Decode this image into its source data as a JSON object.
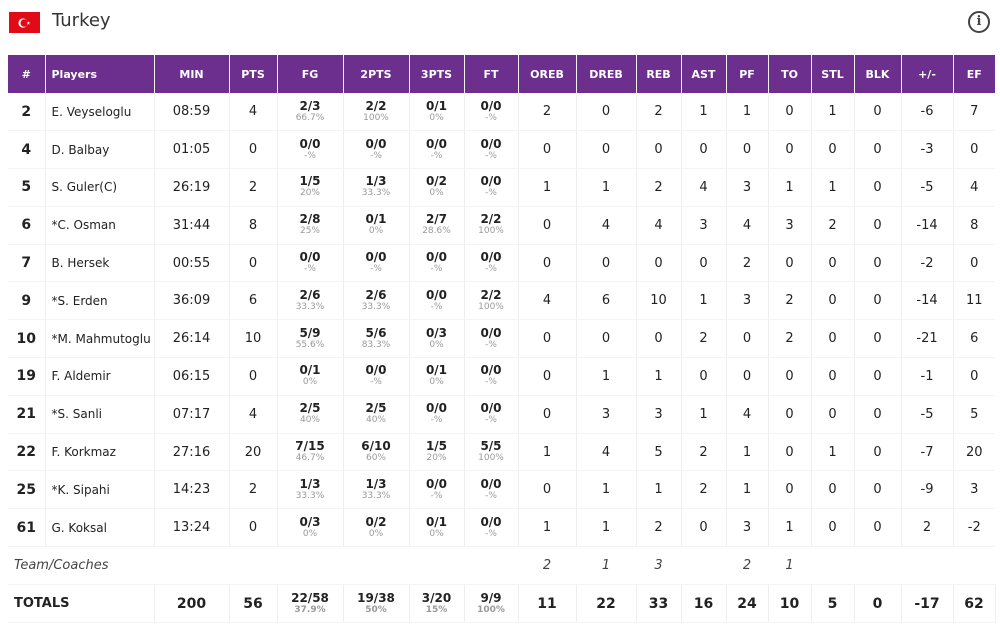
{
  "header": {
    "team_name": "Turkey",
    "flag_icon": "turkey-flag-icon",
    "info_icon": "info-icon",
    "info_glyph": "i"
  },
  "columns": [
    "#",
    "Players",
    "MIN",
    "PTS",
    "FG",
    "2PTS",
    "3PTS",
    "FT",
    "OREB",
    "DREB",
    "REB",
    "AST",
    "PF",
    "TO",
    "STL",
    "BLK",
    "+/-",
    "EF"
  ],
  "players": [
    {
      "num": "2",
      "name": "E. Veyseloglu",
      "min": "08:59",
      "pts": "4",
      "fg": "2/3",
      "fg_pct": "66.7%",
      "p2": "2/2",
      "p2_pct": "100%",
      "p3": "0/1",
      "p3_pct": "0%",
      "ft": "0/0",
      "ft_pct": "-%",
      "oreb": "2",
      "dreb": "0",
      "reb": "2",
      "ast": "1",
      "pf": "1",
      "to": "0",
      "stl": "1",
      "blk": "0",
      "pm": "-6",
      "ef": "7"
    },
    {
      "num": "4",
      "name": "D. Balbay",
      "min": "01:05",
      "pts": "0",
      "fg": "0/0",
      "fg_pct": "-%",
      "p2": "0/0",
      "p2_pct": "-%",
      "p3": "0/0",
      "p3_pct": "-%",
      "ft": "0/0",
      "ft_pct": "-%",
      "oreb": "0",
      "dreb": "0",
      "reb": "0",
      "ast": "0",
      "pf": "0",
      "to": "0",
      "stl": "0",
      "blk": "0",
      "pm": "-3",
      "ef": "0"
    },
    {
      "num": "5",
      "name": "S. Guler(C)",
      "min": "26:19",
      "pts": "2",
      "fg": "1/5",
      "fg_pct": "20%",
      "p2": "1/3",
      "p2_pct": "33.3%",
      "p3": "0/2",
      "p3_pct": "0%",
      "ft": "0/0",
      "ft_pct": "-%",
      "oreb": "1",
      "dreb": "1",
      "reb": "2",
      "ast": "4",
      "pf": "3",
      "to": "1",
      "stl": "1",
      "blk": "0",
      "pm": "-5",
      "ef": "4"
    },
    {
      "num": "6",
      "name": "*C. Osman",
      "min": "31:44",
      "pts": "8",
      "fg": "2/8",
      "fg_pct": "25%",
      "p2": "0/1",
      "p2_pct": "0%",
      "p3": "2/7",
      "p3_pct": "28.6%",
      "ft": "2/2",
      "ft_pct": "100%",
      "oreb": "0",
      "dreb": "4",
      "reb": "4",
      "ast": "3",
      "pf": "4",
      "to": "3",
      "stl": "2",
      "blk": "0",
      "pm": "-14",
      "ef": "8"
    },
    {
      "num": "7",
      "name": "B. Hersek",
      "min": "00:55",
      "pts": "0",
      "fg": "0/0",
      "fg_pct": "-%",
      "p2": "0/0",
      "p2_pct": "-%",
      "p3": "0/0",
      "p3_pct": "-%",
      "ft": "0/0",
      "ft_pct": "-%",
      "oreb": "0",
      "dreb": "0",
      "reb": "0",
      "ast": "0",
      "pf": "2",
      "to": "0",
      "stl": "0",
      "blk": "0",
      "pm": "-2",
      "ef": "0"
    },
    {
      "num": "9",
      "name": "*S. Erden",
      "min": "36:09",
      "pts": "6",
      "fg": "2/6",
      "fg_pct": "33.3%",
      "p2": "2/6",
      "p2_pct": "33.3%",
      "p3": "0/0",
      "p3_pct": "-%",
      "ft": "2/2",
      "ft_pct": "100%",
      "oreb": "4",
      "dreb": "6",
      "reb": "10",
      "ast": "1",
      "pf": "3",
      "to": "2",
      "stl": "0",
      "blk": "0",
      "pm": "-14",
      "ef": "11"
    },
    {
      "num": "10",
      "name": "*M. Mahmutoglu",
      "min": "26:14",
      "pts": "10",
      "fg": "5/9",
      "fg_pct": "55.6%",
      "p2": "5/6",
      "p2_pct": "83.3%",
      "p3": "0/3",
      "p3_pct": "0%",
      "ft": "0/0",
      "ft_pct": "-%",
      "oreb": "0",
      "dreb": "0",
      "reb": "0",
      "ast": "2",
      "pf": "0",
      "to": "2",
      "stl": "0",
      "blk": "0",
      "pm": "-21",
      "ef": "6"
    },
    {
      "num": "19",
      "name": "F. Aldemir",
      "min": "06:15",
      "pts": "0",
      "fg": "0/1",
      "fg_pct": "0%",
      "p2": "0/0",
      "p2_pct": "-%",
      "p3": "0/1",
      "p3_pct": "0%",
      "ft": "0/0",
      "ft_pct": "-%",
      "oreb": "0",
      "dreb": "1",
      "reb": "1",
      "ast": "0",
      "pf": "0",
      "to": "0",
      "stl": "0",
      "blk": "0",
      "pm": "-1",
      "ef": "0"
    },
    {
      "num": "21",
      "name": "*S. Sanli",
      "min": "07:17",
      "pts": "4",
      "fg": "2/5",
      "fg_pct": "40%",
      "p2": "2/5",
      "p2_pct": "40%",
      "p3": "0/0",
      "p3_pct": "-%",
      "ft": "0/0",
      "ft_pct": "-%",
      "oreb": "0",
      "dreb": "3",
      "reb": "3",
      "ast": "1",
      "pf": "4",
      "to": "0",
      "stl": "0",
      "blk": "0",
      "pm": "-5",
      "ef": "5"
    },
    {
      "num": "22",
      "name": "F. Korkmaz",
      "min": "27:16",
      "pts": "20",
      "fg": "7/15",
      "fg_pct": "46.7%",
      "p2": "6/10",
      "p2_pct": "60%",
      "p3": "1/5",
      "p3_pct": "20%",
      "ft": "5/5",
      "ft_pct": "100%",
      "oreb": "1",
      "dreb": "4",
      "reb": "5",
      "ast": "2",
      "pf": "1",
      "to": "0",
      "stl": "1",
      "blk": "0",
      "pm": "-7",
      "ef": "20"
    },
    {
      "num": "25",
      "name": "*K. Sipahi",
      "min": "14:23",
      "pts": "2",
      "fg": "1/3",
      "fg_pct": "33.3%",
      "p2": "1/3",
      "p2_pct": "33.3%",
      "p3": "0/0",
      "p3_pct": "-%",
      "ft": "0/0",
      "ft_pct": "-%",
      "oreb": "0",
      "dreb": "1",
      "reb": "1",
      "ast": "2",
      "pf": "1",
      "to": "0",
      "stl": "0",
      "blk": "0",
      "pm": "-9",
      "ef": "3"
    },
    {
      "num": "61",
      "name": "G. Koksal",
      "min": "13:24",
      "pts": "0",
      "fg": "0/3",
      "fg_pct": "0%",
      "p2": "0/2",
      "p2_pct": "0%",
      "p3": "0/1",
      "p3_pct": "0%",
      "ft": "0/0",
      "ft_pct": "-%",
      "oreb": "1",
      "dreb": "1",
      "reb": "2",
      "ast": "0",
      "pf": "3",
      "to": "1",
      "stl": "0",
      "blk": "0",
      "pm": "2",
      "ef": "-2"
    }
  ],
  "team_coaches": {
    "label": "Team/Coaches",
    "oreb": "2",
    "dreb": "1",
    "reb": "3",
    "pf": "2",
    "to": "1"
  },
  "totals": {
    "label": "TOTALS",
    "min": "200",
    "pts": "56",
    "fg": "22/58",
    "fg_pct": "37.9%",
    "p2": "19/38",
    "p2_pct": "50%",
    "p3": "3/20",
    "p3_pct": "15%",
    "ft": "9/9",
    "ft_pct": "100%",
    "oreb": "11",
    "dreb": "22",
    "reb": "33",
    "ast": "16",
    "pf": "24",
    "to": "10",
    "stl": "5",
    "blk": "0",
    "pm": "-17",
    "ef": "62"
  }
}
